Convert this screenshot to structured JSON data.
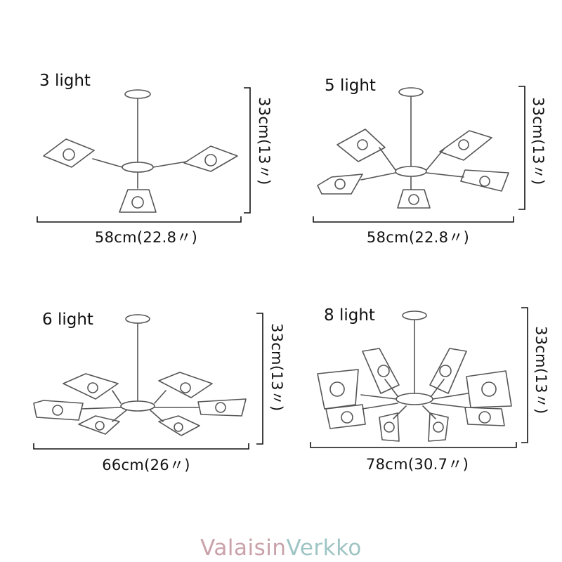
{
  "panels": [
    {
      "label": "3 light",
      "width": "58cm(22.8〃)",
      "height": "33cm(13〃)",
      "arms": 3
    },
    {
      "label": "5 light",
      "width": "58cm(22.8〃)",
      "height": "33cm(13〃)",
      "arms": 5
    },
    {
      "label": "6 light",
      "width": "66cm(26〃)",
      "height": "33cm(13〃)",
      "arms": 6
    },
    {
      "label": "8 light",
      "width": "78cm(30.7〃)",
      "height": "33cm(13〃)",
      "arms": 8
    }
  ],
  "brand": {
    "part1": "Valaisin",
    "part2": "Verkko"
  }
}
